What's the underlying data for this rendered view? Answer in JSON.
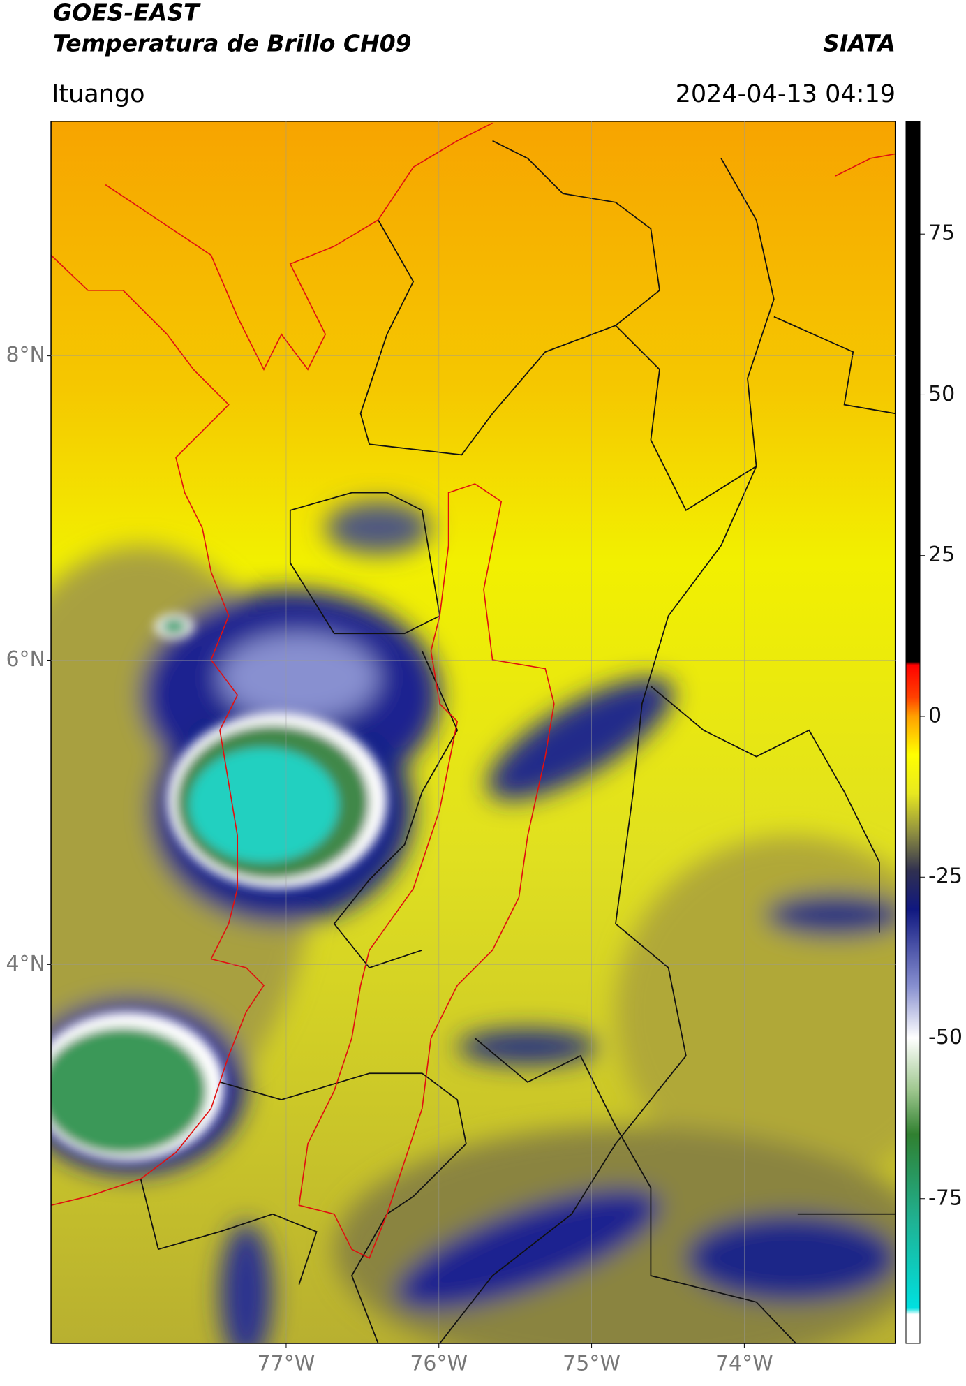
{
  "header": {
    "title": "GOES-EAST",
    "subtitle": "Temperatura de Brillo CH09",
    "source": "SIATA",
    "location": "Ituango",
    "datetime": "2024-04-13 04:19"
  },
  "map": {
    "xlim": [
      -78.54,
      -73.01
    ],
    "ylim": [
      1.51,
      9.54
    ],
    "xticks": [
      {
        "value": -77,
        "label": "77°W"
      },
      {
        "value": -76,
        "label": "76°W"
      },
      {
        "value": -75,
        "label": "75°W"
      },
      {
        "value": -74,
        "label": "74°W"
      }
    ],
    "yticks": [
      {
        "value": 4,
        "label": "4°N"
      },
      {
        "value": 6,
        "label": "6°N"
      },
      {
        "value": 8,
        "label": "8°N"
      }
    ],
    "grid": true
  },
  "colorbar": {
    "lim": [
      -97.5,
      92.5
    ],
    "ticks": [
      -75,
      -50,
      -25,
      0,
      25,
      50,
      75
    ],
    "stops": [
      {
        "value": -97.5,
        "color": "#ffffff"
      },
      {
        "value": -93,
        "color": "#ffffff"
      },
      {
        "value": -92,
        "color": "#00e0e0"
      },
      {
        "value": -78,
        "color": "#20b090"
      },
      {
        "value": -65,
        "color": "#308030"
      },
      {
        "value": -58,
        "color": "#a0c890"
      },
      {
        "value": -50,
        "color": "#ffffff"
      },
      {
        "value": -42,
        "color": "#8890d0"
      },
      {
        "value": -30,
        "color": "#101880"
      },
      {
        "value": -24,
        "color": "#303050"
      },
      {
        "value": -18,
        "color": "#909040"
      },
      {
        "value": -12,
        "color": "#e8e820"
      },
      {
        "value": -6,
        "color": "#ffff00"
      },
      {
        "value": 0,
        "color": "#ffa000"
      },
      {
        "value": 3,
        "color": "#ff4000"
      },
      {
        "value": 8,
        "color": "#ff0000"
      },
      {
        "value": 8.5,
        "color": "#000000"
      },
      {
        "value": 92.5,
        "color": "#000000"
      }
    ]
  }
}
